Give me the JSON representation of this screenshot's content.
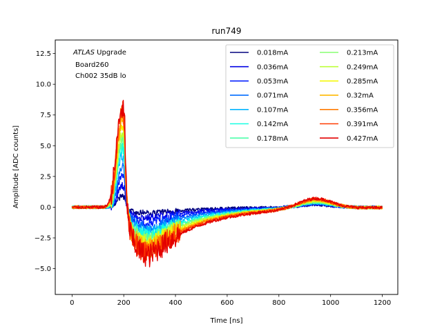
{
  "chart_data": {
    "type": "line",
    "title": "run749",
    "xlabel": "Time [ns]",
    "ylabel": "Amplitude [ADC counts]",
    "xlim": [
      -65,
      1260
    ],
    "ylim": [
      -7.1,
      13.6
    ],
    "xticks": [
      0,
      200,
      400,
      600,
      800,
      1000,
      1200
    ],
    "xtick_labels": [
      "0",
      "200",
      "400",
      "600",
      "800",
      "1000",
      "1200"
    ],
    "yticks": [
      -5.0,
      -2.5,
      0.0,
      2.5,
      5.0,
      7.5,
      10.0,
      12.5
    ],
    "ytick_labels": [
      "−5.0",
      "−2.5",
      "0.0",
      "2.5",
      "5.0",
      "7.5",
      "10.0",
      "12.5"
    ],
    "grid": false,
    "legend_position": "top-right",
    "legend_columns": 2,
    "annotation": {
      "line1_italic": "ATLAS",
      "line1_rest": " Upgrade",
      "line2": "Board260",
      "line3": "Ch002 35dB lo"
    },
    "x_range": [
      0,
      1200
    ],
    "series": [
      {
        "name": "0.018mA",
        "color": "#00007f",
        "peak": 0.9,
        "trough": -0.5,
        "bump": 0.2
      },
      {
        "name": "0.036mA",
        "color": "#0000e3",
        "peak": 1.8,
        "trough": -0.9,
        "bump": 0.25
      },
      {
        "name": "0.053mA",
        "color": "#001cff",
        "peak": 2.6,
        "trough": -1.3,
        "bump": 0.3
      },
      {
        "name": "0.071mA",
        "color": "#006cff",
        "peak": 3.3,
        "trough": -1.7,
        "bump": 0.35
      },
      {
        "name": "0.107mA",
        "color": "#00b4ff",
        "peak": 4.2,
        "trough": -2.1,
        "bump": 0.4
      },
      {
        "name": "0.142mA",
        "color": "#14ffe2",
        "peak": 4.8,
        "trough": -2.4,
        "bump": 0.45
      },
      {
        "name": "0.178mA",
        "color": "#4dffaa",
        "peak": 5.3,
        "trough": -2.7,
        "bump": 0.5
      },
      {
        "name": "0.213mA",
        "color": "#86ff71",
        "peak": 5.8,
        "trough": -2.9,
        "bump": 0.55
      },
      {
        "name": "0.249mA",
        "color": "#bdff39",
        "peak": 6.2,
        "trough": -3.1,
        "bump": 0.6
      },
      {
        "name": "0.285mA",
        "color": "#f4f802",
        "peak": 6.6,
        "trough": -3.3,
        "bump": 0.65
      },
      {
        "name": "0.32mA",
        "color": "#ffb800",
        "peak": 7.0,
        "trough": -3.5,
        "bump": 0.7
      },
      {
        "name": "0.356mA",
        "color": "#ff7a00",
        "peak": 7.4,
        "trough": -3.7,
        "bump": 0.75
      },
      {
        "name": "0.391mA",
        "color": "#ff3b00",
        "peak": 7.8,
        "trough": -3.9,
        "bump": 0.8
      },
      {
        "name": "0.427mA",
        "color": "#e30000",
        "peak": 8.0,
        "trough": -4.1,
        "bump": 0.85
      }
    ]
  }
}
